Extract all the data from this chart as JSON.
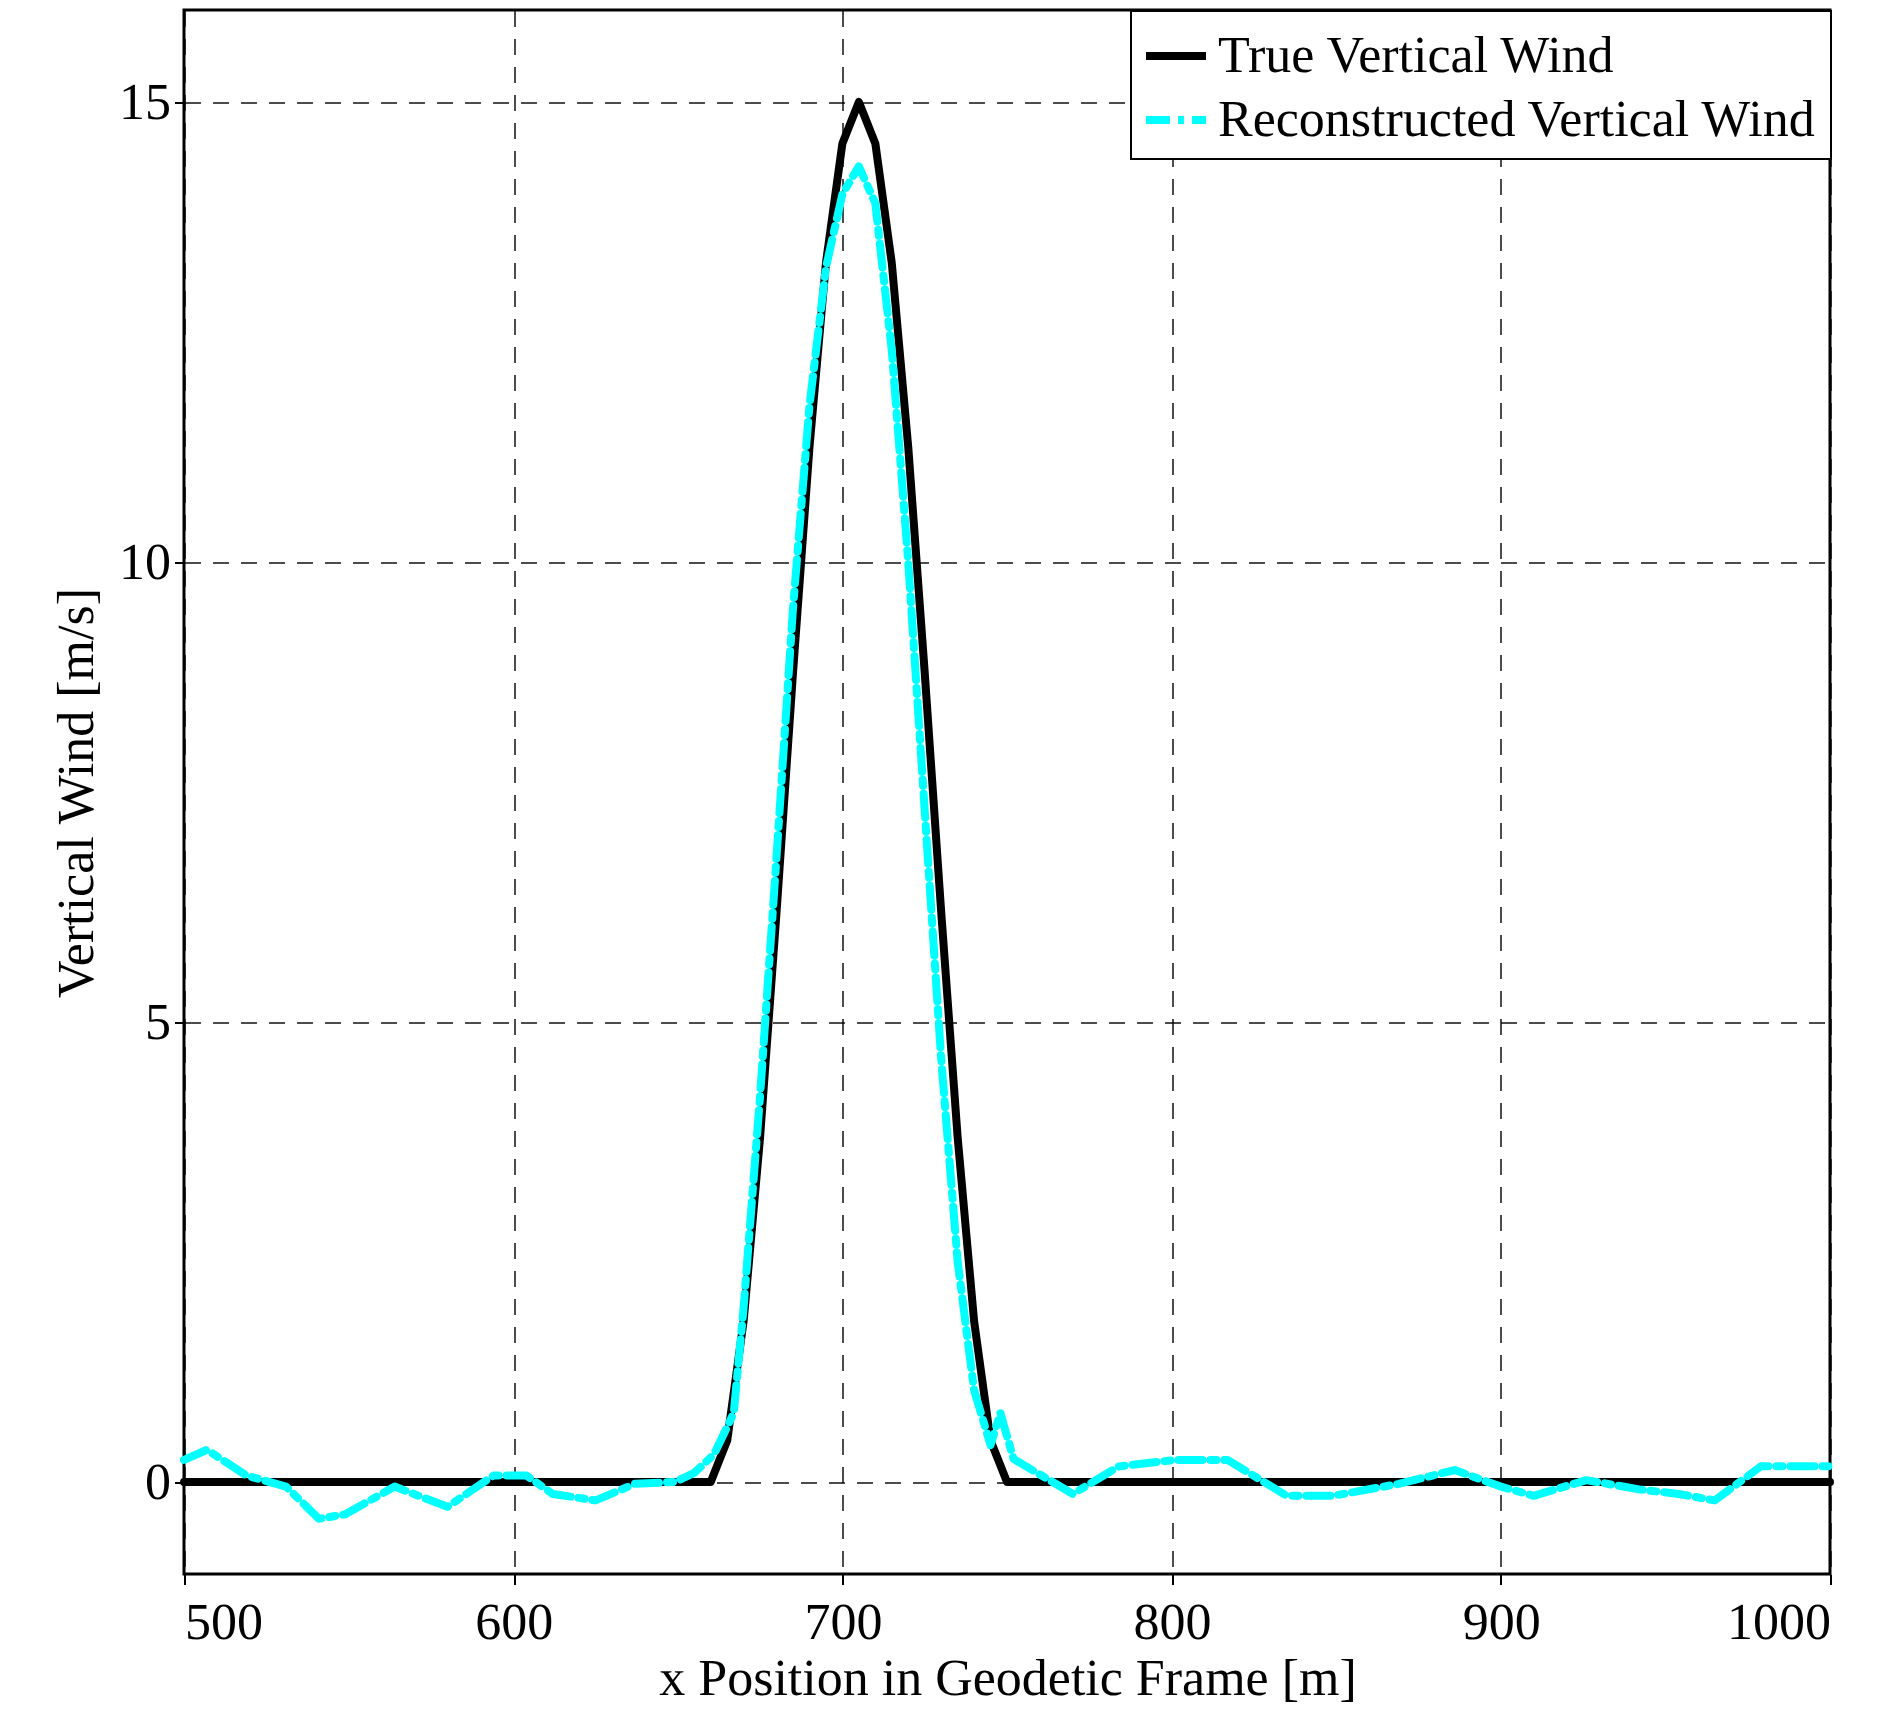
{
  "chart_data": {
    "type": "line",
    "xlabel": "x Position in Geodetic Frame [m]",
    "ylabel": "Vertical Wind [m/s]",
    "xlim": [
      500,
      1000
    ],
    "ylim": [
      -1,
      16
    ],
    "xticks": [
      500,
      600,
      700,
      800,
      900,
      1000
    ],
    "yticks": [
      0,
      5,
      10,
      15
    ],
    "grid": true,
    "legend": "top right",
    "series": [
      {
        "name": "True Vertical Wind",
        "color": "#000000",
        "line_style": "solid",
        "x": [
          500,
          660,
          665,
          670,
          675,
          680,
          685,
          690,
          695,
          700,
          705,
          710,
          715,
          720,
          725,
          730,
          735,
          740,
          745,
          750,
          1000
        ],
        "values": [
          0,
          0,
          0.45,
          1.75,
          3.75,
          6.2,
          8.8,
          11.25,
          13.25,
          14.55,
          15,
          14.55,
          13.25,
          11.25,
          8.8,
          6.2,
          3.75,
          1.75,
          0.45,
          0,
          0
        ]
      },
      {
        "name": "Reconstructed Vertical Wind",
        "color": "#00ffff",
        "line_style": "dashed",
        "x": [
          500,
          507,
          519,
          531,
          541,
          549,
          564,
          580,
          594,
          604,
          612,
          625,
          637,
          649,
          655,
          661,
          667,
          670,
          675,
          680,
          685,
          690,
          695,
          700,
          705,
          710,
          715,
          720,
          725,
          730,
          735,
          740,
          745,
          748,
          752,
          770,
          784,
          801,
          817,
          835,
          849,
          869,
          886,
          900,
          910,
          926,
          942,
          954,
          965,
          979,
          1000
        ],
        "values": [
          0.24,
          0.35,
          0.07,
          -0.05,
          -0.4,
          -0.35,
          -0.05,
          -0.27,
          0.07,
          0.07,
          -0.13,
          -0.2,
          -0.02,
          0,
          0.1,
          0.3,
          0.75,
          1.9,
          4.2,
          6.8,
          9.5,
          11.7,
          13.2,
          14.0,
          14.3,
          13.9,
          12.3,
          10.0,
          7.3,
          4.6,
          2.4,
          1.0,
          0.4,
          0.75,
          0.25,
          -0.13,
          0.17,
          0.24,
          0.24,
          -0.15,
          -0.15,
          -0.02,
          0.13,
          -0.05,
          -0.15,
          0.02,
          -0.08,
          -0.13,
          -0.2,
          0.17,
          0.17
        ]
      }
    ]
  }
}
